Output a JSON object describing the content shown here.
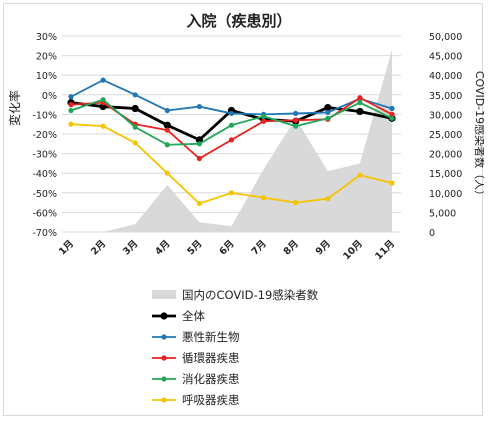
{
  "chart_data": {
    "type": "line",
    "title": "入院（疾患別）",
    "ylabel": "変化率",
    "y2label": "COVID-19感染者数（人）",
    "categories": [
      "1月",
      "2月",
      "3月",
      "4月",
      "5月",
      "6月",
      "7月",
      "8月",
      "9月",
      "10月",
      "11月"
    ],
    "ylim": [
      -70,
      30
    ],
    "yticks": [
      "30%",
      "20%",
      "10%",
      "0%",
      "-10%",
      "-20%",
      "-30%",
      "-40%",
      "-50%",
      "-60%",
      "-70%"
    ],
    "y2lim": [
      0,
      50000
    ],
    "y2ticks": [
      "50,000",
      "45,000",
      "40,000",
      "35,000",
      "30,000",
      "25,000",
      "20,000",
      "15,000",
      "10,000",
      "5,000",
      "0"
    ],
    "area": {
      "name": "国内のCOVID-19感染者数",
      "color": "#d9d9d9",
      "values": [
        0,
        0,
        2000,
        12000,
        2500,
        1500,
        16000,
        29000,
        15500,
        17500,
        46500
      ]
    },
    "series": [
      {
        "name": "全体",
        "color": "#000000",
        "values": [
          -4,
          -6,
          -7,
          -15.5,
          -23,
          -8,
          -12.5,
          -13.5,
          -6.5,
          -8.5,
          -12
        ]
      },
      {
        "name": "悪性新生物",
        "color": "#1f77b4",
        "values": [
          -1,
          7.5,
          0,
          -8,
          -6,
          -9.5,
          -10,
          -9.5,
          -9,
          -2,
          -7
        ]
      },
      {
        "name": "循環器疾患",
        "color": "#e8221e",
        "values": [
          -5,
          -4,
          -15,
          -18,
          -32.5,
          -23,
          -13.5,
          -13,
          -12.5,
          -1.5,
          -10
        ]
      },
      {
        "name": "消化器疾患",
        "color": "#22a65a",
        "values": [
          -8,
          -2.5,
          -16.5,
          -25.5,
          -25,
          -15.5,
          -11,
          -16,
          -12,
          -4,
          -12
        ]
      },
      {
        "name": "呼吸器疾患",
        "color": "#f5c400",
        "values": [
          -15,
          -16,
          -24.5,
          -40,
          -55.5,
          -50,
          -52.5,
          -55,
          -53,
          -41,
          -45
        ]
      }
    ],
    "legend_position": "bottom"
  }
}
